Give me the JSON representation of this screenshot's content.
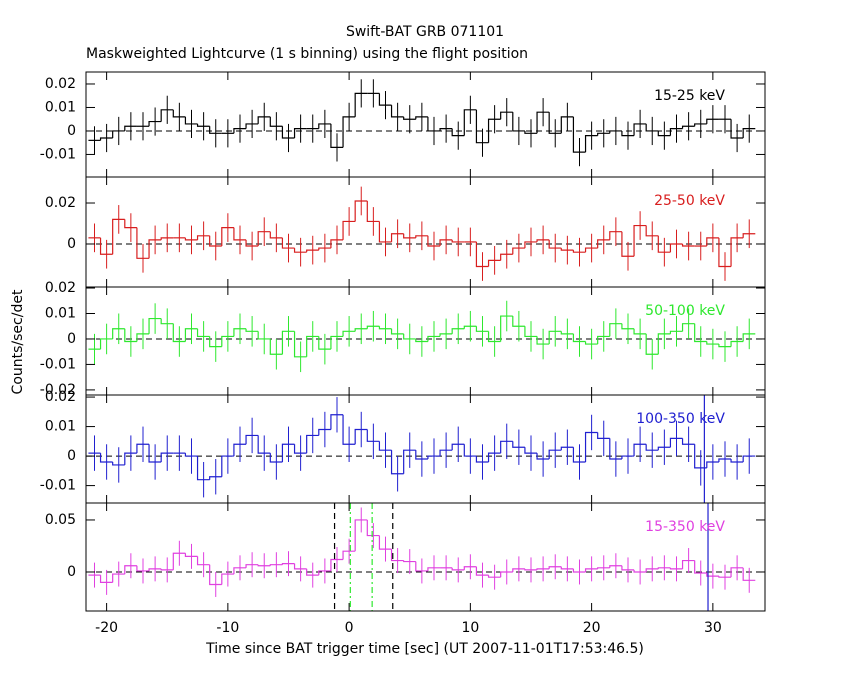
{
  "chart_data": [
    {
      "type": "step",
      "title": "Swift-BAT GRB 071101",
      "subtitle": "Maskweighted Lightcurve (1 s binning) using the flight position",
      "label": "15-25 keV",
      "color": "#000000",
      "x": [
        -21,
        -20,
        -19,
        -18,
        -17,
        -16,
        -15,
        -14,
        -13,
        -12,
        -11,
        -10,
        -9,
        -8,
        -7,
        -6,
        -5,
        -4,
        -3,
        -2,
        -1,
        0,
        1,
        2,
        3,
        4,
        5,
        6,
        7,
        8,
        9,
        10,
        11,
        12,
        13,
        14,
        15,
        16,
        17,
        18,
        19,
        20,
        21,
        22,
        23,
        24,
        25,
        26,
        27,
        28,
        29,
        30,
        31,
        32,
        33
      ],
      "values": [
        -0.004,
        -0.003,
        0.0,
        0.002,
        0.002,
        0.004,
        0.009,
        0.006,
        0.003,
        0.002,
        -0.001,
        -0.001,
        0.001,
        0.003,
        0.006,
        0.002,
        -0.003,
        0.001,
        0.001,
        0.003,
        -0.007,
        0.006,
        0.016,
        0.016,
        0.011,
        0.006,
        0.005,
        0.006,
        0.0,
        0.001,
        -0.002,
        0.009,
        -0.005,
        0.005,
        0.008,
        0.0,
        -0.001,
        0.008,
        -0.001,
        0.006,
        -0.009,
        -0.002,
        -0.001,
        0.0,
        -0.002,
        0.003,
        0.0,
        -0.002,
        0.001,
        0.002,
        0.003,
        0.005,
        0.005,
        -0.003,
        0.001
      ],
      "error": 0.006,
      "xlim": [
        -21.7,
        34.3
      ],
      "ylim": [
        -0.0196,
        0.0251
      ],
      "yticks": [
        -0.01,
        0,
        0.01,
        0.02
      ],
      "xticks": [
        -20,
        -10,
        0,
        10,
        20,
        30
      ]
    },
    {
      "type": "step",
      "label": "25-50 keV",
      "color": "#d81e1e",
      "x": [
        -21,
        -20,
        -19,
        -18,
        -17,
        -16,
        -15,
        -14,
        -13,
        -12,
        -11,
        -10,
        -9,
        -8,
        -7,
        -6,
        -5,
        -4,
        -3,
        -2,
        -1,
        0,
        1,
        2,
        3,
        4,
        5,
        6,
        7,
        8,
        9,
        10,
        11,
        12,
        13,
        14,
        15,
        16,
        17,
        18,
        19,
        20,
        21,
        22,
        23,
        24,
        25,
        26,
        27,
        28,
        29,
        30,
        31,
        32,
        33
      ],
      "values": [
        0.003,
        -0.005,
        0.012,
        0.008,
        -0.007,
        0.002,
        0.003,
        0.003,
        0.002,
        0.004,
        -0.001,
        0.008,
        0.002,
        -0.001,
        0.006,
        0.003,
        -0.002,
        -0.004,
        -0.003,
        -0.002,
        0.002,
        0.011,
        0.021,
        0.011,
        0.001,
        0.005,
        0.003,
        0.004,
        -0.001,
        0.002,
        0.001,
        0.001,
        -0.011,
        -0.008,
        -0.005,
        -0.002,
        0.001,
        0.002,
        -0.002,
        -0.003,
        -0.004,
        -0.002,
        0.002,
        0.006,
        -0.006,
        0.009,
        0.004,
        -0.004,
        0.0,
        -0.001,
        -0.001,
        0.003,
        -0.011,
        0.003,
        0.005
      ],
      "error": 0.007,
      "xlim": [
        -21.7,
        34.3
      ],
      "ylim": [
        -0.021,
        0.0327
      ],
      "yticks": [
        0,
        0.02
      ],
      "xticks": [
        -20,
        -10,
        0,
        10,
        20,
        30
      ]
    },
    {
      "type": "step",
      "label": "50-100 keV",
      "color": "#2ee82e",
      "ylabel": "Counts/sec/det",
      "x": [
        -21,
        -20,
        -19,
        -18,
        -17,
        -16,
        -15,
        -14,
        -13,
        -12,
        -11,
        -10,
        -9,
        -8,
        -7,
        -6,
        -5,
        -4,
        -3,
        -2,
        -1,
        0,
        1,
        2,
        3,
        4,
        5,
        6,
        7,
        8,
        9,
        10,
        11,
        12,
        13,
        14,
        15,
        16,
        17,
        18,
        19,
        20,
        21,
        22,
        23,
        24,
        25,
        26,
        27,
        28,
        29,
        30,
        31,
        32,
        33
      ],
      "values": [
        -0.004,
        0.0,
        0.004,
        -0.001,
        0.002,
        0.008,
        0.006,
        -0.001,
        0.004,
        0.001,
        -0.003,
        0.001,
        0.004,
        0.003,
        0.0,
        -0.006,
        0.003,
        -0.007,
        0.001,
        -0.004,
        0.001,
        0.003,
        0.004,
        0.005,
        0.004,
        0.002,
        0.0,
        -0.001,
        0.001,
        0.002,
        0.004,
        0.005,
        0.003,
        -0.001,
        0.009,
        0.005,
        0.001,
        -0.002,
        0.003,
        0.002,
        -0.001,
        -0.002,
        0.001,
        0.006,
        0.004,
        0.002,
        -0.006,
        0.002,
        0.003,
        0.006,
        -0.001,
        -0.002,
        -0.003,
        -0.001,
        0.002
      ],
      "error": 0.006,
      "xlim": [
        -21.7,
        34.3
      ],
      "ylim": [
        -0.022,
        0.0204
      ],
      "yticks": [
        -0.02,
        -0.01,
        0,
        0.01,
        0.02
      ],
      "xticks": [
        -20,
        -10,
        0,
        10,
        20,
        30
      ]
    },
    {
      "type": "step",
      "label": "100-350 keV",
      "color": "#2020d0",
      "x": [
        -21,
        -20,
        -19,
        -18,
        -17,
        -16,
        -15,
        -14,
        -13,
        -12,
        -11,
        -10,
        -9,
        -8,
        -7,
        -6,
        -5,
        -4,
        -3,
        -2,
        -1,
        0,
        1,
        2,
        3,
        4,
        5,
        6,
        7,
        8,
        9,
        10,
        11,
        12,
        13,
        14,
        15,
        16,
        17,
        18,
        19,
        20,
        21,
        22,
        23,
        24,
        25,
        26,
        27,
        28,
        29,
        30,
        31,
        32,
        33
      ],
      "values": [
        0.001,
        -0.002,
        -0.003,
        0.001,
        0.004,
        -0.002,
        0.001,
        0.001,
        0.0,
        -0.008,
        -0.007,
        0.0,
        0.004,
        0.007,
        0.001,
        -0.002,
        0.004,
        0.001,
        0.007,
        0.009,
        0.014,
        0.004,
        0.009,
        0.005,
        0.002,
        -0.006,
        0.002,
        -0.001,
        0.0,
        0.002,
        0.004,
        0.0,
        -0.002,
        0.001,
        0.005,
        0.003,
        0.001,
        -0.001,
        0.002,
        0.003,
        -0.002,
        0.008,
        0.006,
        -0.001,
        0.0,
        0.004,
        0.002,
        0.003,
        0.006,
        0.004,
        -0.004,
        -0.002,
        -0.001,
        -0.002,
        0.0
      ],
      "error": 0.006,
      "xlim": [
        -21.7,
        34.3
      ],
      "ylim": [
        -0.0159,
        0.0207
      ],
      "yticks": [
        -0.01,
        0,
        0.01,
        0.02
      ],
      "xticks": [
        -20,
        -10,
        0,
        10,
        20,
        30
      ],
      "vlines": [
        {
          "x": 29.3,
          "color": "#2020d0",
          "dash": "none"
        }
      ]
    },
    {
      "type": "step",
      "label": "15-350 keV",
      "color": "#e040e0",
      "xlabel": "Time since BAT trigger time [sec] (UT 2007-11-01T17:53:46.5)",
      "x": [
        -21,
        -20,
        -19,
        -18,
        -17,
        -16,
        -15,
        -14,
        -13,
        -12,
        -11,
        -10,
        -9,
        -8,
        -7,
        -6,
        -5,
        -4,
        -3,
        -2,
        -1,
        0,
        1,
        2,
        3,
        4,
        5,
        6,
        7,
        8,
        9,
        10,
        11,
        12,
        13,
        14,
        15,
        16,
        17,
        18,
        19,
        20,
        21,
        22,
        23,
        24,
        25,
        26,
        27,
        28,
        29,
        30,
        31,
        32,
        33
      ],
      "values": [
        -0.003,
        -0.01,
        -0.002,
        0.006,
        0.001,
        0.003,
        0.002,
        0.018,
        0.015,
        0.007,
        -0.012,
        -0.002,
        0.004,
        0.007,
        0.006,
        0.007,
        0.008,
        0.003,
        -0.003,
        0.001,
        0.012,
        0.02,
        0.05,
        0.035,
        0.022,
        0.011,
        0.01,
        0.001,
        0.004,
        0.004,
        0.002,
        0.005,
        -0.003,
        -0.005,
        0.0,
        0.003,
        0.002,
        0.003,
        0.005,
        0.003,
        0.0,
        0.003,
        0.004,
        0.006,
        0.002,
        0.0,
        0.003,
        0.004,
        0.003,
        0.011,
        -0.001,
        -0.004,
        -0.005,
        0.004,
        -0.008
      ],
      "error": 0.012,
      "xlim": [
        -21.7,
        34.3
      ],
      "ylim": [
        -0.0375,
        0.0663
      ],
      "yticks": [
        0,
        0.05
      ],
      "xticks": [
        -20,
        -10,
        0,
        10,
        20,
        30
      ],
      "vlines": [
        {
          "x": -1.2,
          "color": "#000000",
          "dash": "6 4"
        },
        {
          "x": 3.6,
          "color": "#000000",
          "dash": "6 4"
        },
        {
          "x": 0.1,
          "color": "#2ee82e",
          "dash": "6 3 2 3"
        },
        {
          "x": 1.9,
          "color": "#2ee82e",
          "dash": "6 3 2 3"
        },
        {
          "x": 29.6,
          "color": "#2020d0",
          "dash": "none"
        }
      ]
    }
  ]
}
